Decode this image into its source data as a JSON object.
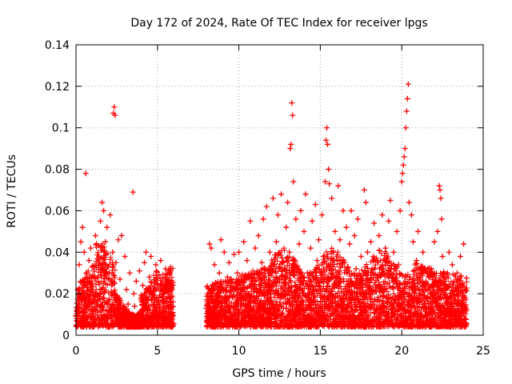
{
  "chart_data": {
    "type": "scatter",
    "title": "Day 172 of 2024, Rate Of TEC Index for receiver lpgs",
    "xlabel": "GPS time / hours",
    "ylabel": "ROTI / TECUs",
    "xlim": [
      0,
      25
    ],
    "ylim": [
      0,
      0.14
    ],
    "x_ticks": [
      0,
      5,
      10,
      15,
      20,
      25
    ],
    "x_tick_labels": [
      "0",
      "5",
      "10",
      "15",
      "20",
      "25"
    ],
    "y_ticks": [
      0,
      0.02,
      0.04,
      0.06,
      0.08,
      0.1,
      0.12,
      0.14
    ],
    "y_tick_labels": [
      "0",
      "0.02",
      "0.04",
      "0.06",
      "0.08",
      "0.1",
      "0.12",
      "0.14"
    ],
    "grid": true,
    "marker": "+",
    "marker_color": "#ff0000",
    "series": [
      {
        "name": "ROTI",
        "points": [
          [
            0.05,
            0.012
          ],
          [
            0.1,
            0.022
          ],
          [
            0.2,
            0.034
          ],
          [
            0.25,
            0.008
          ],
          [
            0.3,
            0.045
          ],
          [
            0.35,
            0.018
          ],
          [
            0.4,
            0.052
          ],
          [
            0.45,
            0.026
          ],
          [
            0.5,
            0.04
          ],
          [
            0.55,
            0.011
          ],
          [
            0.6,
            0.078
          ],
          [
            0.65,
            0.03
          ],
          [
            0.7,
            0.02
          ],
          [
            0.8,
            0.036
          ],
          [
            0.85,
            0.015
          ],
          [
            0.9,
            0.042
          ],
          [
            1.0,
            0.025
          ],
          [
            1.05,
            0.009
          ],
          [
            1.1,
            0.033
          ],
          [
            1.2,
            0.048
          ],
          [
            1.3,
            0.019
          ],
          [
            1.35,
            0.028
          ],
          [
            1.4,
            0.038
          ],
          [
            1.5,
            0.055
          ],
          [
            1.55,
            0.014
          ],
          [
            1.6,
            0.064
          ],
          [
            1.65,
            0.032
          ],
          [
            1.7,
            0.06
          ],
          [
            1.75,
            0.021
          ],
          [
            1.8,
            0.045
          ],
          [
            1.9,
            0.052
          ],
          [
            2.0,
            0.016
          ],
          [
            2.05,
            0.03
          ],
          [
            2.1,
            0.058
          ],
          [
            2.2,
            0.024
          ],
          [
            2.25,
            0.04
          ],
          [
            2.3,
            0.107
          ],
          [
            2.35,
            0.11
          ],
          [
            2.4,
            0.106
          ],
          [
            2.45,
            0.035
          ],
          [
            2.5,
            0.018
          ],
          [
            2.6,
            0.046
          ],
          [
            2.7,
            0.027
          ],
          [
            2.8,
            0.048
          ],
          [
            2.9,
            0.012
          ],
          [
            3.0,
            0.038
          ],
          [
            3.1,
            0.022
          ],
          [
            3.2,
            0.015
          ],
          [
            3.3,
            0.03
          ],
          [
            3.4,
            0.01
          ],
          [
            3.5,
            0.069
          ],
          [
            3.55,
            0.02
          ],
          [
            3.6,
            0.014
          ],
          [
            3.7,
            0.026
          ],
          [
            3.8,
            0.008
          ],
          [
            3.9,
            0.031
          ],
          [
            4.0,
            0.018
          ],
          [
            4.1,
            0.024
          ],
          [
            4.2,
            0.035
          ],
          [
            4.3,
            0.04
          ],
          [
            4.4,
            0.012
          ],
          [
            4.5,
            0.028
          ],
          [
            4.6,
            0.038
          ],
          [
            4.7,
            0.02
          ],
          [
            4.8,
            0.016
          ],
          [
            4.9,
            0.034
          ],
          [
            5.0,
            0.009
          ],
          [
            5.1,
            0.029
          ],
          [
            5.2,
            0.036
          ],
          [
            5.3,
            0.022
          ],
          [
            5.4,
            0.014
          ],
          [
            5.5,
            0.032
          ],
          [
            5.6,
            0.018
          ],
          [
            5.7,
            0.025
          ],
          [
            5.8,
            0.011
          ],
          [
            5.9,
            0.022
          ],
          [
            8.05,
            0.007
          ],
          [
            8.1,
            0.012
          ],
          [
            8.2,
            0.044
          ],
          [
            8.25,
            0.02
          ],
          [
            8.3,
            0.042
          ],
          [
            8.4,
            0.016
          ],
          [
            8.5,
            0.034
          ],
          [
            8.6,
            0.025
          ],
          [
            8.7,
            0.01
          ],
          [
            8.8,
            0.03
          ],
          [
            8.9,
            0.046
          ],
          [
            9.0,
            0.018
          ],
          [
            9.1,
            0.04
          ],
          [
            9.2,
            0.012
          ],
          [
            9.3,
            0.028
          ],
          [
            9.4,
            0.035
          ],
          [
            9.5,
            0.022
          ],
          [
            9.6,
            0.009
          ],
          [
            9.7,
            0.039
          ],
          [
            9.8,
            0.016
          ],
          [
            9.9,
            0.03
          ],
          [
            10.0,
            0.04
          ],
          [
            10.1,
            0.014
          ],
          [
            10.2,
            0.026
          ],
          [
            10.3,
            0.045
          ],
          [
            10.4,
            0.02
          ],
          [
            10.5,
            0.036
          ],
          [
            10.6,
            0.01
          ],
          [
            10.7,
            0.055
          ],
          [
            10.8,
            0.028
          ],
          [
            10.9,
            0.016
          ],
          [
            11.0,
            0.042
          ],
          [
            11.1,
            0.022
          ],
          [
            11.2,
            0.048
          ],
          [
            11.3,
            0.012
          ],
          [
            11.4,
            0.035
          ],
          [
            11.5,
            0.056
          ],
          [
            11.6,
            0.025
          ],
          [
            11.7,
            0.062
          ],
          [
            11.8,
            0.018
          ],
          [
            11.9,
            0.04
          ],
          [
            12.0,
            0.03
          ],
          [
            12.1,
            0.066
          ],
          [
            12.2,
            0.014
          ],
          [
            12.3,
            0.045
          ],
          [
            12.4,
            0.058
          ],
          [
            12.5,
            0.027
          ],
          [
            12.6,
            0.068
          ],
          [
            12.7,
            0.035
          ],
          [
            12.8,
            0.02
          ],
          [
            12.9,
            0.052
          ],
          [
            13.0,
            0.064
          ],
          [
            13.1,
            0.04
          ],
          [
            13.15,
            0.09
          ],
          [
            13.2,
            0.092
          ],
          [
            13.25,
            0.112
          ],
          [
            13.3,
            0.106
          ],
          [
            13.35,
            0.074
          ],
          [
            13.4,
            0.032
          ],
          [
            13.5,
            0.056
          ],
          [
            13.6,
            0.018
          ],
          [
            13.7,
            0.044
          ],
          [
            13.8,
            0.06
          ],
          [
            13.9,
            0.025
          ],
          [
            14.0,
            0.05
          ],
          [
            14.1,
            0.068
          ],
          [
            14.2,
            0.03
          ],
          [
            14.3,
            0.014
          ],
          [
            14.4,
            0.042
          ],
          [
            14.5,
            0.055
          ],
          [
            14.6,
            0.022
          ],
          [
            14.7,
            0.063
          ],
          [
            14.8,
            0.036
          ],
          [
            14.9,
            0.046
          ],
          [
            15.0,
            0.012
          ],
          [
            15.1,
            0.058
          ],
          [
            15.2,
            0.032
          ],
          [
            15.3,
            0.074
          ],
          [
            15.35,
            0.094
          ],
          [
            15.4,
            0.1
          ],
          [
            15.45,
            0.092
          ],
          [
            15.5,
            0.08
          ],
          [
            15.55,
            0.073
          ],
          [
            15.6,
            0.02
          ],
          [
            15.7,
            0.066
          ],
          [
            15.8,
            0.04
          ],
          [
            15.9,
            0.05
          ],
          [
            16.0,
            0.028
          ],
          [
            16.1,
            0.072
          ],
          [
            16.2,
            0.046
          ],
          [
            16.3,
            0.016
          ],
          [
            16.4,
            0.06
          ],
          [
            16.5,
            0.035
          ],
          [
            16.6,
            0.052
          ],
          [
            16.7,
            0.024
          ],
          [
            16.8,
            0.044
          ],
          [
            16.9,
            0.06
          ],
          [
            17.0,
            0.018
          ],
          [
            17.1,
            0.048
          ],
          [
            17.2,
            0.032
          ],
          [
            17.3,
            0.056
          ],
          [
            17.4,
            0.014
          ],
          [
            17.5,
            0.038
          ],
          [
            17.6,
            0.025
          ],
          [
            17.7,
            0.07
          ],
          [
            17.8,
            0.064
          ],
          [
            17.9,
            0.04
          ],
          [
            18.0,
            0.02
          ],
          [
            18.1,
            0.045
          ],
          [
            18.2,
            0.03
          ],
          [
            18.3,
            0.054
          ],
          [
            18.4,
            0.012
          ],
          [
            18.5,
            0.036
          ],
          [
            18.6,
            0.048
          ],
          [
            18.7,
            0.022
          ],
          [
            18.8,
            0.058
          ],
          [
            18.9,
            0.03
          ],
          [
            19.0,
            0.042
          ],
          [
            19.1,
            0.016
          ],
          [
            19.2,
            0.055
          ],
          [
            19.3,
            0.065
          ],
          [
            19.4,
            0.028
          ],
          [
            19.5,
            0.04
          ],
          [
            19.6,
            0.012
          ],
          [
            19.7,
            0.05
          ],
          [
            19.8,
            0.034
          ],
          [
            19.9,
            0.06
          ],
          [
            20.0,
            0.074
          ],
          [
            20.05,
            0.078
          ],
          [
            20.1,
            0.082
          ],
          [
            20.15,
            0.086
          ],
          [
            20.2,
            0.09
          ],
          [
            20.25,
            0.1
          ],
          [
            20.3,
            0.108
          ],
          [
            20.35,
            0.114
          ],
          [
            20.4,
            0.121
          ],
          [
            20.45,
            0.064
          ],
          [
            20.5,
            0.028
          ],
          [
            20.6,
            0.058
          ],
          [
            20.7,
            0.045
          ],
          [
            20.8,
            0.018
          ],
          [
            20.9,
            0.036
          ],
          [
            21.0,
            0.05
          ],
          [
            21.1,
            0.022
          ],
          [
            21.2,
            0.03
          ],
          [
            21.3,
            0.04
          ],
          [
            21.4,
            0.014
          ],
          [
            21.5,
            0.025
          ],
          [
            21.6,
            0.032
          ],
          [
            21.7,
            0.01
          ],
          [
            21.8,
            0.02
          ],
          [
            21.9,
            0.028
          ],
          [
            22.0,
            0.045
          ],
          [
            22.1,
            0.016
          ],
          [
            22.2,
            0.05
          ],
          [
            22.3,
            0.072
          ],
          [
            22.35,
            0.07
          ],
          [
            22.4,
            0.066
          ],
          [
            22.45,
            0.056
          ],
          [
            22.5,
            0.038
          ],
          [
            22.6,
            0.024
          ],
          [
            22.7,
            0.012
          ],
          [
            22.8,
            0.03
          ],
          [
            22.9,
            0.04
          ],
          [
            23.0,
            0.018
          ],
          [
            23.1,
            0.034
          ],
          [
            23.2,
            0.026
          ],
          [
            23.3,
            0.009
          ],
          [
            23.4,
            0.03
          ],
          [
            23.5,
            0.02
          ],
          [
            23.6,
            0.038
          ],
          [
            23.7,
            0.014
          ],
          [
            23.8,
            0.044
          ],
          [
            23.9,
            0.022
          ]
        ]
      }
    ]
  }
}
